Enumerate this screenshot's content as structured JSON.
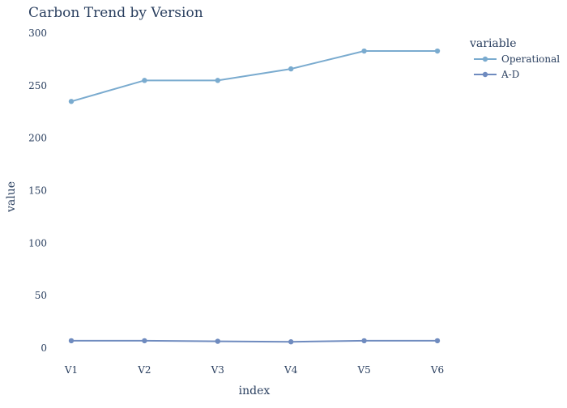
{
  "chart_data": {
    "type": "line",
    "title": "Carbon Trend by Version",
    "xlabel": "index",
    "ylabel": "value",
    "categories": [
      "V1",
      "V2",
      "V3",
      "V4",
      "V5",
      "V6"
    ],
    "ylim": [
      0,
      300
    ],
    "yticks": [
      0,
      50,
      100,
      150,
      200,
      250,
      300
    ],
    "grid": false,
    "legend": {
      "title": "variable",
      "placement": "top-right"
    },
    "series": [
      {
        "name": "Operational",
        "color": "#7AABCF",
        "values": [
          235,
          255,
          255,
          266,
          283,
          283
        ]
      },
      {
        "name": "A-D",
        "color": "#6F8BBF",
        "values": [
          7,
          7,
          6.5,
          6,
          7,
          7
        ]
      }
    ]
  }
}
